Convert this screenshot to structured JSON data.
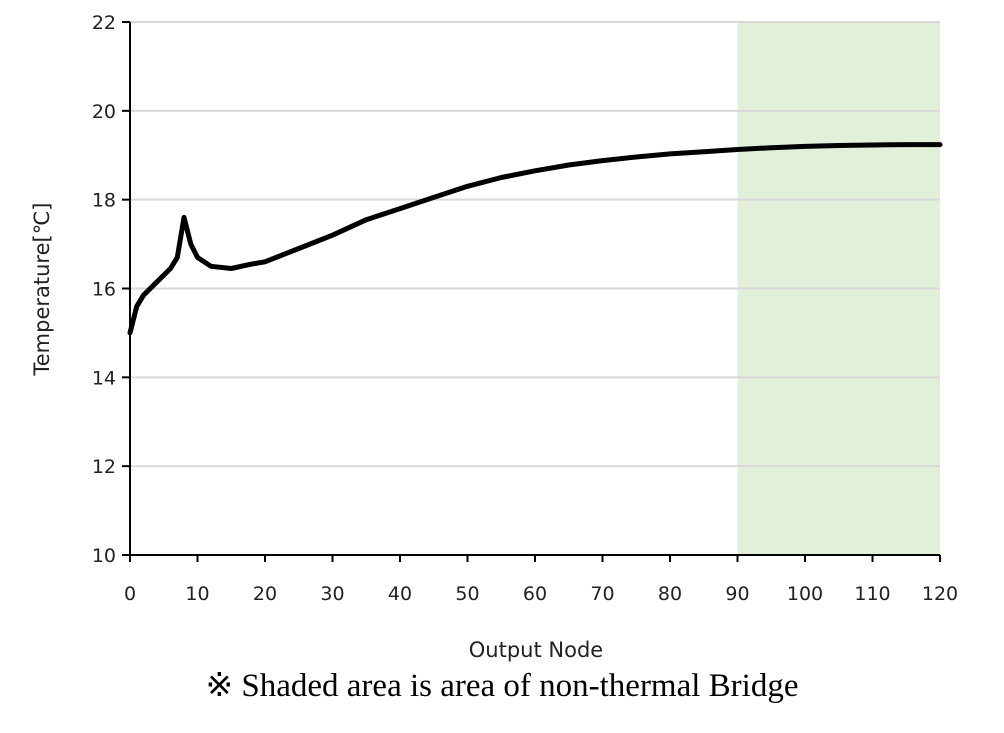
{
  "chart_data": {
    "type": "line",
    "title": "",
    "xlabel": "Output Node",
    "ylabel": "Temperature[℃]",
    "xlim": [
      0,
      120
    ],
    "ylim": [
      10,
      22
    ],
    "xticks": [
      0,
      10,
      20,
      30,
      40,
      50,
      60,
      70,
      80,
      90,
      100,
      110,
      120
    ],
    "yticks": [
      10,
      12,
      14,
      16,
      18,
      20,
      22
    ],
    "grid": "horizontal",
    "shaded_region": {
      "x": [
        90,
        120
      ],
      "color": "#e2efd9",
      "meaning": "non-thermal Bridge"
    },
    "series": [
      {
        "name": "Temperature",
        "color": "#000000",
        "x": [
          0,
          1,
          2,
          4,
          6,
          7,
          8,
          9,
          10,
          12,
          15,
          18,
          20,
          25,
          30,
          35,
          40,
          45,
          50,
          55,
          60,
          65,
          70,
          75,
          80,
          85,
          90,
          95,
          100,
          105,
          110,
          115,
          120
        ],
        "y": [
          15.0,
          15.6,
          15.85,
          16.15,
          16.45,
          16.7,
          17.6,
          17.0,
          16.7,
          16.5,
          16.45,
          16.55,
          16.6,
          16.9,
          17.2,
          17.55,
          17.8,
          18.05,
          18.3,
          18.5,
          18.65,
          18.78,
          18.88,
          18.96,
          19.03,
          19.08,
          19.13,
          19.17,
          19.2,
          19.22,
          19.23,
          19.24,
          19.24
        ]
      }
    ]
  },
  "caption": "※ Shaded area is area of non-thermal Bridge"
}
